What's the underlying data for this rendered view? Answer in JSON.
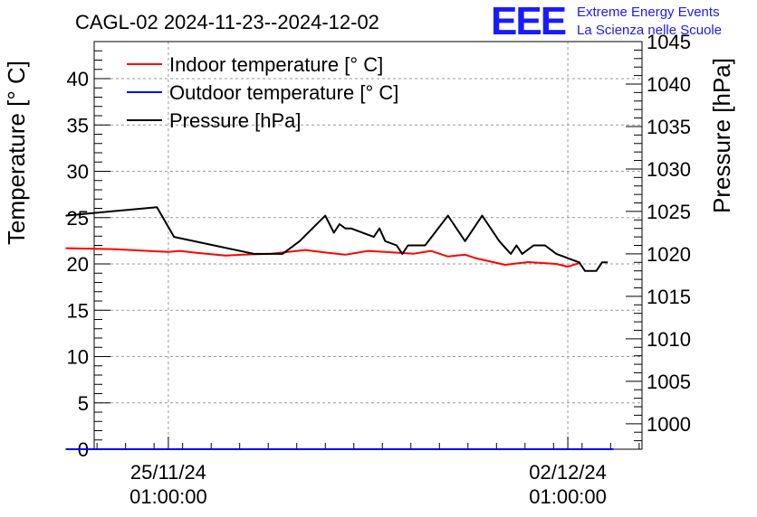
{
  "chart_data": {
    "type": "line",
    "title": "CAGL-02 2024-11-23--2024-12-02",
    "ylabel": "Temperature [° C]",
    "y2label": "Pressure [hPa]",
    "xlabel": "",
    "ylim": [
      0,
      44
    ],
    "y2lim": [
      997,
      1045
    ],
    "xlim_days": [
      -1.3,
      8.3
    ],
    "grid": true,
    "legend_position": "top-left",
    "yticks": [
      0,
      5,
      10,
      15,
      20,
      25,
      30,
      35,
      40
    ],
    "y2ticks": [
      1000,
      1005,
      1010,
      1015,
      1020,
      1025,
      1030,
      1035,
      1040,
      1045
    ],
    "xticks": [
      {
        "day": 0,
        "date": "25/11/24",
        "time": "01:00:00"
      },
      {
        "day": 7,
        "date": "02/12/24",
        "time": "01:00:00"
      }
    ],
    "series": [
      {
        "name": "Indoor temperature [° C]",
        "color": "#ff0000",
        "axis": "left",
        "x": [
          -1.8,
          -1.0,
          0,
          0.2,
          0.5,
          1.0,
          1.3,
          1.8,
          2.4,
          2.8,
          3.1,
          3.5,
          3.8,
          4.3,
          4.6,
          4.9,
          5.2,
          5.4,
          5.9,
          6.3,
          6.8,
          7.0,
          7.2
        ],
        "values": [
          21.7,
          21.6,
          21.3,
          21.4,
          21.2,
          20.9,
          21.0,
          21.1,
          21.5,
          21.2,
          21.0,
          21.4,
          21.3,
          21.1,
          21.4,
          20.8,
          21.0,
          20.6,
          19.9,
          20.2,
          20.0,
          19.7,
          20.1
        ]
      },
      {
        "name": "Outdoor temperature [° C]",
        "color": "#0000ff",
        "axis": "left",
        "x": [
          -1.8,
          7.8
        ],
        "values": [
          0,
          0
        ]
      },
      {
        "name": "Pressure [hPa]",
        "color": "#000000",
        "axis": "right",
        "x": [
          -1.8,
          -0.2,
          0.1,
          0.8,
          1.5,
          2.0,
          2.3,
          2.75,
          2.9,
          3.0,
          3.1,
          3.2,
          3.6,
          3.7,
          3.8,
          4.0,
          4.1,
          4.2,
          4.3,
          4.5,
          4.9,
          5.0,
          5.1,
          5.2,
          5.4,
          5.5,
          5.6,
          5.8,
          6.0,
          6.1,
          6.2,
          6.4,
          6.6,
          6.8,
          7.2,
          7.3,
          7.5,
          7.6,
          7.7
        ],
        "values": [
          1024.5,
          1025.5,
          1022.0,
          1021.0,
          1020.0,
          1020.0,
          1021.5,
          1024.5,
          1022.5,
          1023.5,
          1023.0,
          1023.0,
          1022.0,
          1023.0,
          1021.5,
          1021.0,
          1020.0,
          1021.0,
          1021.0,
          1021.0,
          1024.5,
          1023.5,
          1022.5,
          1021.5,
          1023.5,
          1024.5,
          1023.5,
          1021.5,
          1020.0,
          1021.0,
          1020.0,
          1021.0,
          1021.0,
          1020.0,
          1019.0,
          1018.0,
          1018.0,
          1019.0,
          1019.0
        ]
      }
    ]
  },
  "logo": {
    "mark": "EEE",
    "line1": "Extreme Energy Events",
    "line2": "La Scienza nelle Scuole"
  }
}
